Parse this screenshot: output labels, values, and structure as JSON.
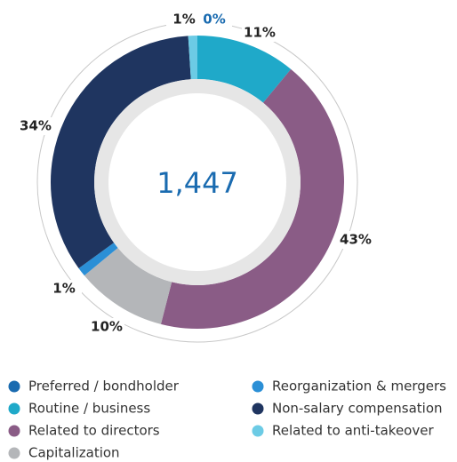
{
  "chart_data": {
    "type": "donut",
    "center_label": "1,447",
    "categories": [
      "Preferred / bondholder",
      "Routine / business",
      "Related to directors",
      "Capitalization",
      "Reorganization & mergers",
      "Non-salary compensation",
      "Related to anti-takeover"
    ],
    "values": [
      0,
      11,
      43,
      10,
      1,
      34,
      1
    ],
    "value_labels": [
      "0%",
      "11%",
      "43%",
      "10%",
      "1%",
      "34%",
      "1%"
    ],
    "colors": [
      "#1a6bb0",
      "#1fa9c9",
      "#8a5c86",
      "#b4b6b9",
      "#2b8fd6",
      "#1f3560",
      "#6ccbe5"
    ],
    "legend": "bottom"
  }
}
